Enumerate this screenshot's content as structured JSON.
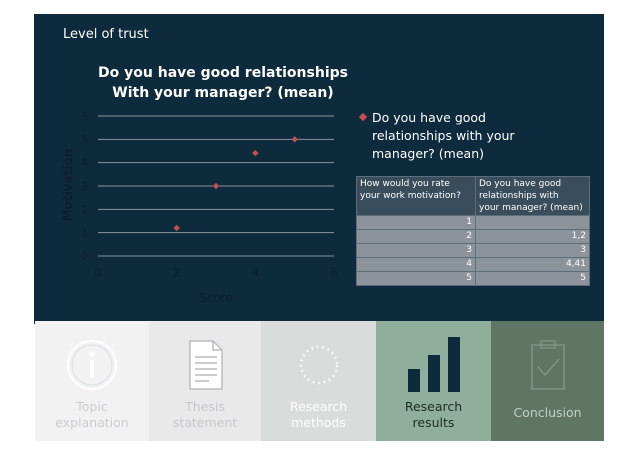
{
  "slide": {
    "section_title": "Level of trust",
    "chart_title_line1": "Do you have good relationships",
    "chart_title_line2": "With your manager? (mean)"
  },
  "legend": {
    "label_line1": "Do you have good",
    "label_line2": "relationships with your",
    "label_line3": "manager? (mean)"
  },
  "chart_data": {
    "type": "scatter",
    "title": "Do you have good relationships With your manager? (mean)",
    "xlabel": "Score",
    "ylabel": "Motivation",
    "xlim": [
      0,
      6
    ],
    "ylim": [
      0,
      6
    ],
    "xticks": [
      "0",
      "2",
      "4",
      "6"
    ],
    "yticks": [
      "0",
      "1",
      "2",
      "3",
      "4",
      "5",
      "6"
    ],
    "grid": "horizontal",
    "legend_position": "right",
    "series": [
      {
        "name": "Do you have good relationships with your manager? (mean)",
        "color": "#c0504d",
        "points": [
          {
            "x": 2,
            "y": 1.2
          },
          {
            "x": 3,
            "y": 3
          },
          {
            "x": 4,
            "y": 4.41
          },
          {
            "x": 5,
            "y": 5
          }
        ]
      }
    ]
  },
  "table": {
    "header_col1_line1": "How would you rate",
    "header_col1_line2": "your work motivation?",
    "header_col2_line1": "Do you have good",
    "header_col2_line2": "relationships with",
    "header_col2_line3": "your manager? (mean)",
    "rows": [
      {
        "c1": "1",
        "c2": ""
      },
      {
        "c1": "2",
        "c2": "1,2"
      },
      {
        "c1": "3",
        "c2": "3"
      },
      {
        "c1": "4",
        "c2": "4,41"
      },
      {
        "c1": "5",
        "c2": "5"
      }
    ]
  },
  "tabs": [
    {
      "line1": "Topic",
      "line2": "explanation",
      "icon": "info-icon"
    },
    {
      "line1": "Thesis",
      "line2": "statement",
      "icon": "document-icon"
    },
    {
      "line1": "Research",
      "line2": "methods",
      "icon": "dotted-circle-icon"
    },
    {
      "line1": "Research",
      "line2": "results",
      "icon": "bar-chart-icon"
    },
    {
      "line1": "Conclusion",
      "line2": "",
      "icon": "clipboard-check-icon"
    }
  ]
}
